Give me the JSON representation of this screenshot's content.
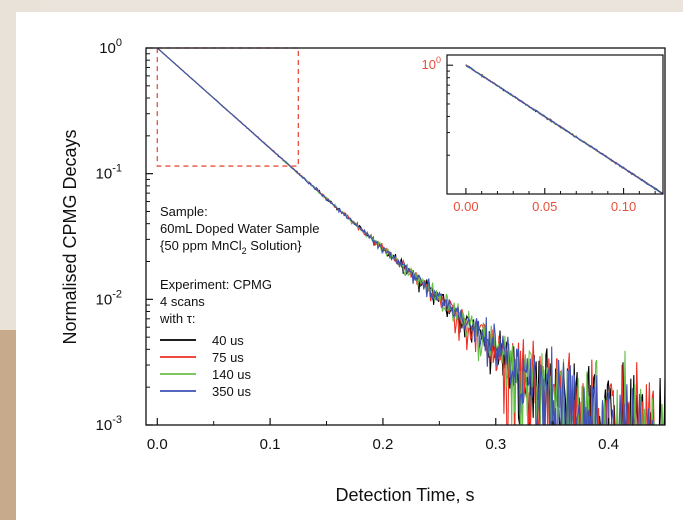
{
  "chart_data": {
    "type": "line",
    "xlabel": "Detection Time, s",
    "ylabel": "Normalised CPMG Decays",
    "xlim": [
      -0.01,
      0.45
    ],
    "ylim": [
      0.001,
      1
    ],
    "yscale": "log",
    "x_ticks": [
      {
        "value": 0.0,
        "label": "0.0"
      },
      {
        "value": 0.1,
        "label": "0.1"
      },
      {
        "value": 0.2,
        "label": "0.2"
      },
      {
        "value": 0.3,
        "label": "0.3"
      },
      {
        "value": 0.4,
        "label": "0.4"
      }
    ],
    "y_ticks": [
      {
        "value": 1,
        "base": "10",
        "exp": "0"
      },
      {
        "value": 0.1,
        "base": "10",
        "exp": "-1"
      },
      {
        "value": 0.01,
        "base": "10",
        "exp": "-2"
      },
      {
        "value": 0.001,
        "base": "10",
        "exp": "-3"
      }
    ],
    "decay_time_constant_s": 0.0544,
    "noise_floor": 0.0009,
    "series": [
      {
        "name": "40 us",
        "color": "#000000",
        "noise_seed": 11
      },
      {
        "name": "75 us",
        "color": "#ee3124",
        "noise_seed": 23
      },
      {
        "name": "140 us",
        "color": "#6abf4b",
        "noise_seed": 37
      },
      {
        "name": "350 us",
        "color": "#3f51b5",
        "noise_seed": 53
      }
    ],
    "annotation": {
      "sample_heading": "Sample:",
      "sample_line1": "60mL Doped Water Sample",
      "sample_line2_pre": "{50 ppm MnCl",
      "sample_line2_sub": "2",
      "sample_line2_post": " Solution}",
      "experiment_line": "Experiment: CPMG",
      "scans_line": "4 scans",
      "tau_line": "with τ:"
    },
    "inset": {
      "xlim": [
        -0.012,
        0.125
      ],
      "ylim": [
        0.1,
        1.2
      ],
      "yscale": "log",
      "x_ticks": [
        {
          "value": 0.0,
          "label": "0.00"
        },
        {
          "value": 0.05,
          "label": "0.05"
        },
        {
          "value": 0.1,
          "label": "0.10"
        }
      ],
      "y_tick": {
        "value": 1,
        "base": "10",
        "exp": "0"
      },
      "tick_color": "#e8503a",
      "zoom_box": {
        "x": [
          0.0,
          0.125
        ],
        "y": [
          0.115,
          1.0
        ]
      }
    }
  }
}
